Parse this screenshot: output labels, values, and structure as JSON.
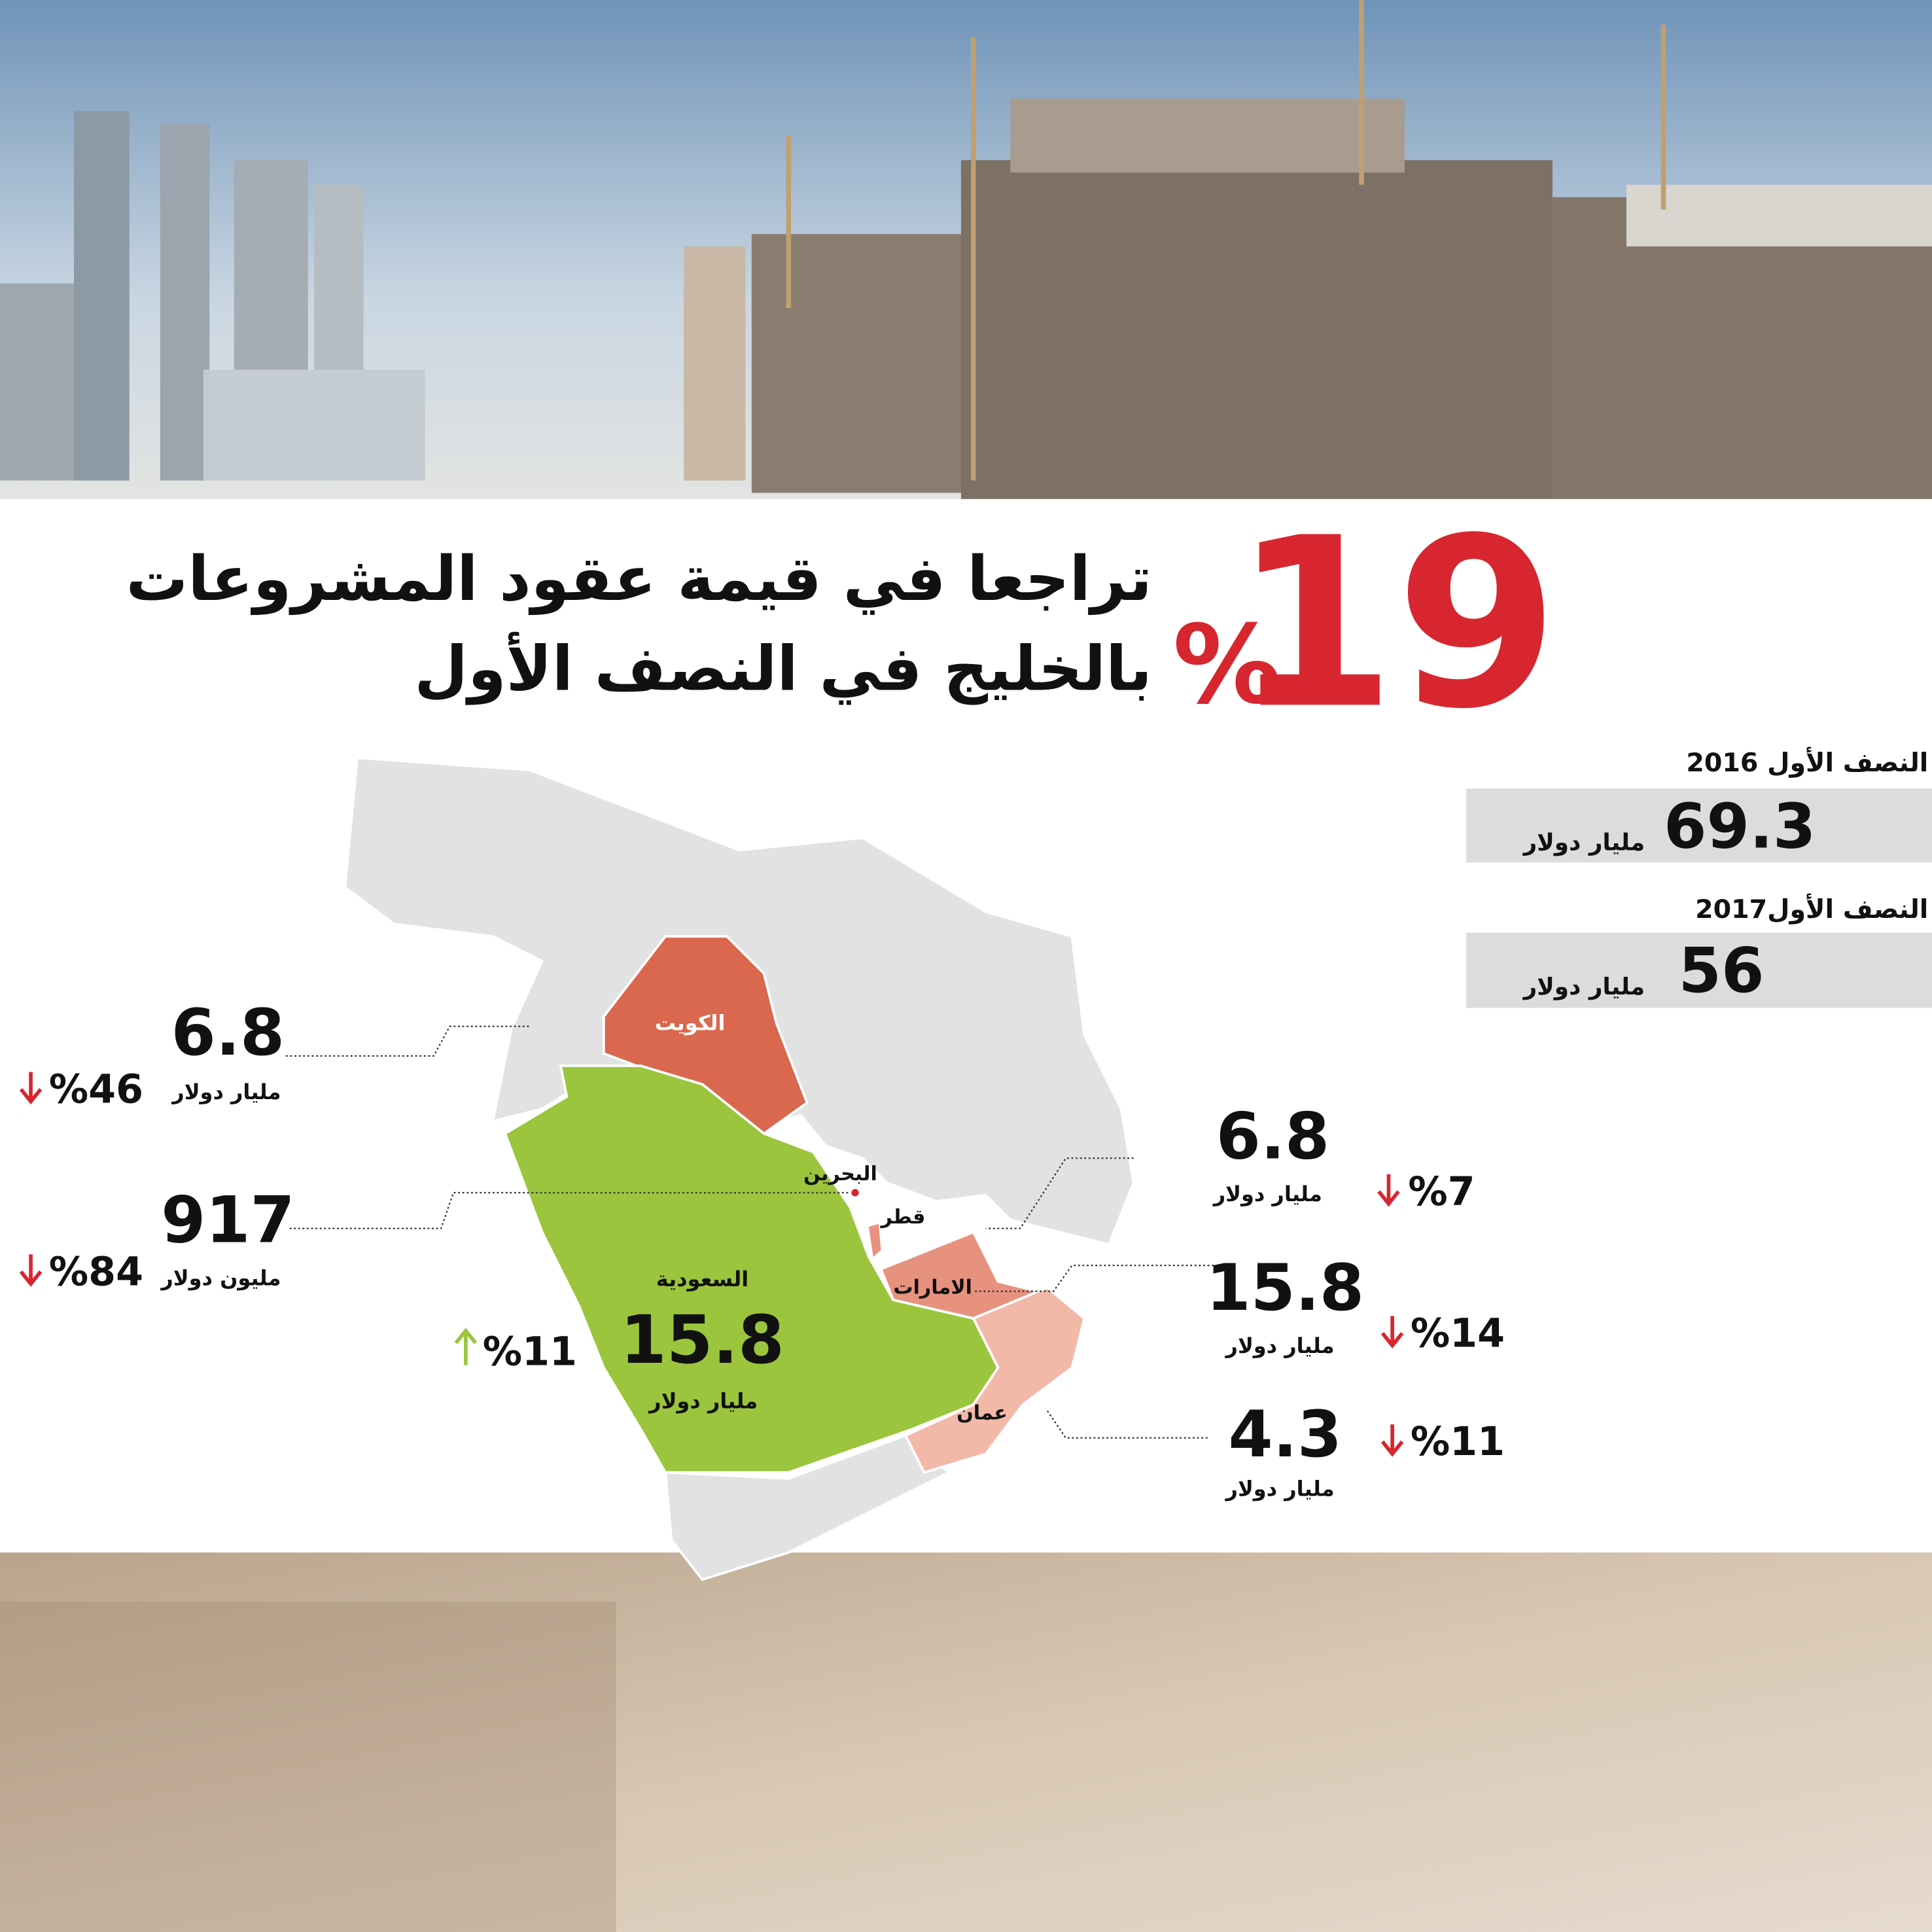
{
  "headline": {
    "number": 19,
    "percent": "%",
    "line1": "تراجعا في قيمة عقود المشروعات",
    "line2": "بالخليج في النصف الأول"
  },
  "summary": [
    {
      "label": "النصف الأول 2016",
      "value": 69.3,
      "unit": "مليار دولار"
    },
    {
      "label": "النصف الأول2017",
      "value": 56,
      "unit": "مليار دولار"
    }
  ],
  "map_labels": [
    "الكويت",
    "البحرين",
    "قطر",
    "السعودية",
    "الامارات",
    "عمان"
  ],
  "callouts": [
    {
      "value": 6.8,
      "unit": "مليار دولار",
      "change": "%46"
    },
    {
      "value": 917,
      "unit": "مليون دولار",
      "change": "%84"
    },
    {
      "value": 15.8,
      "unit": "مليار دولار",
      "change": "%11"
    },
    {
      "value": 6.8,
      "unit": "مليار دولار",
      "change": "%7"
    },
    {
      "value": 15.8,
      "unit": "مليار دولار",
      "change": "%14"
    },
    {
      "value": 4.3,
      "unit": "مليار دولار",
      "change": "%11"
    }
  ]
}
